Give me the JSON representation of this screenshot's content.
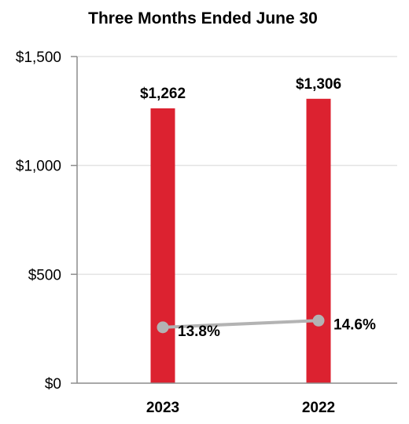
{
  "chart_data": {
    "type": "bar",
    "title": "Three Months Ended June 30",
    "categories": [
      "2023",
      "2022"
    ],
    "ylim": [
      0,
      1500
    ],
    "yticks": [
      0,
      500,
      1000,
      1500
    ],
    "ytick_labels": [
      "$0",
      "$500",
      "$1,000",
      "$1,500"
    ],
    "grid": true,
    "series": [
      {
        "type": "bar",
        "values": [
          1262,
          1306
        ],
        "labels": [
          "$1,262",
          "$1,306"
        ],
        "color": "#dc2230"
      },
      {
        "type": "line",
        "values": [
          13.8,
          14.6
        ],
        "labels": [
          "13.8%",
          "14.6%"
        ],
        "color": "#b3b3b3"
      }
    ]
  }
}
